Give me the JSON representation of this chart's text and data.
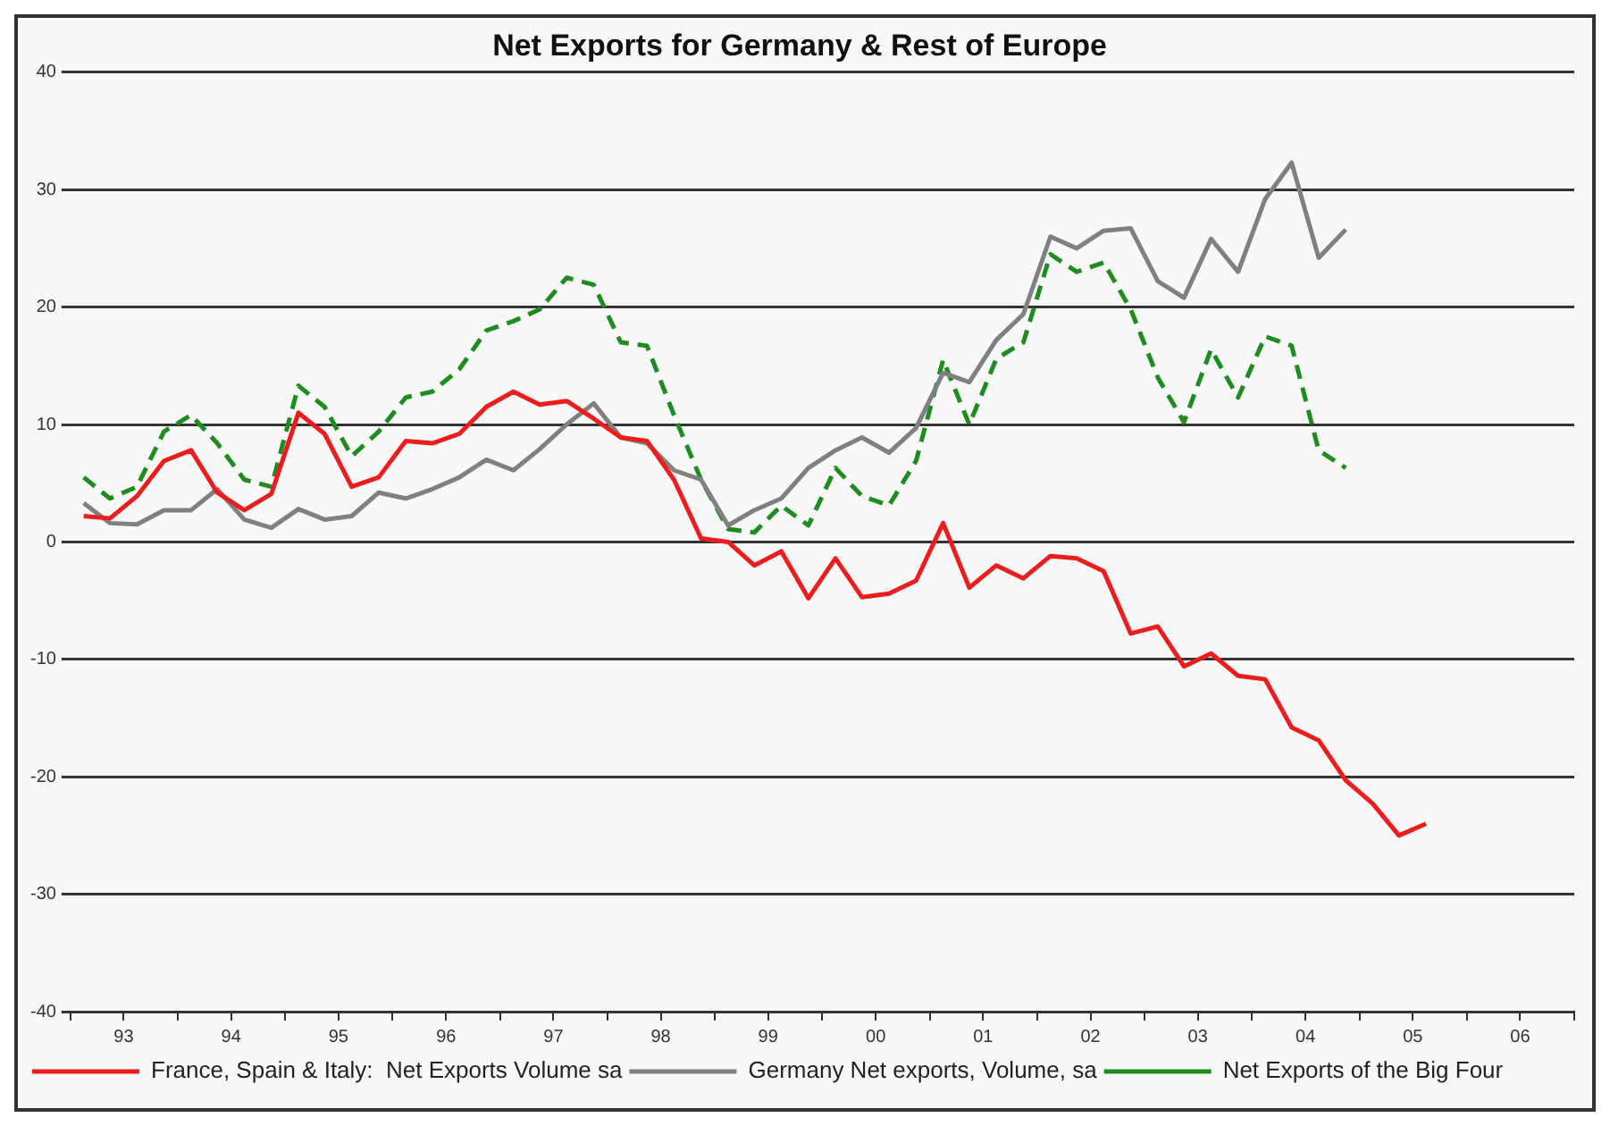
{
  "chart_data": {
    "type": "line",
    "title": "Net Exports for Germany & Rest of Europe",
    "x": [
      "1993-02-15",
      "1993-05-15",
      "1993-08-15",
      "1993-11-15",
      "1994-02-15",
      "1994-05-15",
      "1994-08-15",
      "1994-11-15",
      "1995-02-15",
      "1995-05-15",
      "1995-08-15",
      "1995-11-15",
      "1996-02-15",
      "1996-05-15",
      "1996-08-15",
      "1996-11-15",
      "1997-02-15",
      "1997-05-15",
      "1997-08-15",
      "1997-11-15",
      "1998-02-15",
      "1998-05-15",
      "1998-08-15",
      "1998-11-15",
      "1999-02-15",
      "1999-05-15",
      "1999-08-15",
      "1999-11-15",
      "2000-02-15",
      "2000-05-15",
      "2000-08-15",
      "2000-11-15",
      "2001-02-15",
      "2001-05-15",
      "2001-08-15",
      "2001-11-15",
      "2002-02-15",
      "2002-05-15",
      "2002-08-15",
      "2002-11-15",
      "2003-02-15",
      "2003-05-15",
      "2003-08-15",
      "2003-11-15",
      "2004-02-15",
      "2004-05-15",
      "2004-08-15",
      "2004-11-15",
      "2005-02-15",
      "2005-05-15",
      "2005-08-15"
    ],
    "series": [
      {
        "name": "France, Spain & Italy:  Net Exports Volume sa",
        "color": "#ee1c1c",
        "line_style": "solid",
        "values": [
          2.2,
          2.0,
          3.9,
          6.9,
          7.8,
          4.2,
          2.7,
          4.1,
          11,
          9.2,
          4.7,
          5.5,
          8.6,
          8.4,
          9.2,
          11.5,
          12.8,
          11.7,
          12,
          10.5,
          8.9,
          8.6,
          5.3,
          0.3,
          0,
          -2,
          -0.8,
          -4.8,
          -1.4,
          -4.7,
          -4.4,
          -3.3,
          1.6,
          -3.9,
          -2,
          -3.1,
          -1.2,
          -1.4,
          -2.5,
          -7.8,
          -7.2,
          -10.6,
          -9.5,
          -11.4,
          -11.7,
          -15.8,
          -16.9,
          -20.3,
          -22.3,
          -25,
          -24
        ]
      },
      {
        "name": "Germany Net exports, Volume, sa",
        "color": "#808080",
        "line_style": "solid",
        "values": [
          3.3,
          1.6,
          1.5,
          2.7,
          2.7,
          4.5,
          1.9,
          1.2,
          2.8,
          1.9,
          2.2,
          4.2,
          3.7,
          4.5,
          5.5,
          7,
          6.1,
          7.9,
          10,
          11.8,
          8.9,
          8.4,
          6.1,
          5.3,
          1.4,
          2.7,
          3.7,
          6.3,
          7.8,
          8.9,
          7.6,
          9.7,
          14.4,
          13.6,
          17.2,
          19.4,
          26,
          25,
          26.5,
          26.7,
          22.2,
          20.8,
          25.8,
          23,
          29.2,
          32.3,
          24.2,
          26.6,
          null,
          null,
          null
        ]
      },
      {
        "name": "Net Exports of the Big Four",
        "color": "#1e8c1e",
        "line_style": "dashed",
        "values": [
          5.5,
          3.7,
          4.7,
          9.4,
          10.8,
          8.4,
          5.3,
          4.7,
          13.3,
          11.5,
          7.3,
          9.4,
          12.3,
          12.8,
          14.7,
          18,
          18.8,
          19.8,
          22.5,
          21.9,
          17,
          16.7,
          10.8,
          5.3,
          1.1,
          0.8,
          3.1,
          1.4,
          6.3,
          3.9,
          3.1,
          6.9,
          15.5,
          10,
          15.6,
          17,
          24.5,
          23,
          23.8,
          19.8,
          14,
          10.2,
          16.4,
          12.3,
          17.5,
          16.7,
          7.8,
          6.3,
          null,
          null,
          null
        ]
      }
    ],
    "xlim": [
      "1993-01-01",
      "2007-01-01"
    ],
    "xticks": [
      {
        "value": "1993-01-01",
        "label": null
      },
      {
        "value": "1993-07-01",
        "label": "93"
      },
      {
        "value": "1994-01-01",
        "label": null
      },
      {
        "value": "1994-07-01",
        "label": "94"
      },
      {
        "value": "1995-01-01",
        "label": null
      },
      {
        "value": "1995-07-01",
        "label": "95"
      },
      {
        "value": "1996-01-01",
        "label": null
      },
      {
        "value": "1996-07-01",
        "label": "96"
      },
      {
        "value": "1997-01-01",
        "label": null
      },
      {
        "value": "1997-07-01",
        "label": "97"
      },
      {
        "value": "1998-01-01",
        "label": null
      },
      {
        "value": "1998-07-01",
        "label": "98"
      },
      {
        "value": "1999-01-01",
        "label": null
      },
      {
        "value": "1999-07-01",
        "label": "99"
      },
      {
        "value": "2000-01-01",
        "label": null
      },
      {
        "value": "2000-07-01",
        "label": "00"
      },
      {
        "value": "2001-01-01",
        "label": null
      },
      {
        "value": "2001-07-01",
        "label": "01"
      },
      {
        "value": "2002-01-01",
        "label": null
      },
      {
        "value": "2002-07-01",
        "label": "02"
      },
      {
        "value": "2003-01-01",
        "label": null
      },
      {
        "value": "2003-07-01",
        "label": "03"
      },
      {
        "value": "2004-01-01",
        "label": null
      },
      {
        "value": "2004-07-01",
        "label": "04"
      },
      {
        "value": "2005-01-01",
        "label": null
      },
      {
        "value": "2005-07-01",
        "label": "05"
      },
      {
        "value": "2006-01-01",
        "label": null
      },
      {
        "value": "2006-07-01",
        "label": "06"
      },
      {
        "value": "2007-01-01",
        "label": null
      }
    ],
    "ylim": [
      -40,
      40
    ],
    "yticks": [
      -40,
      -30,
      -20,
      -10,
      0,
      10,
      20,
      30,
      40
    ],
    "grid": "y",
    "legend": "bottom left",
    "marker": "none"
  }
}
